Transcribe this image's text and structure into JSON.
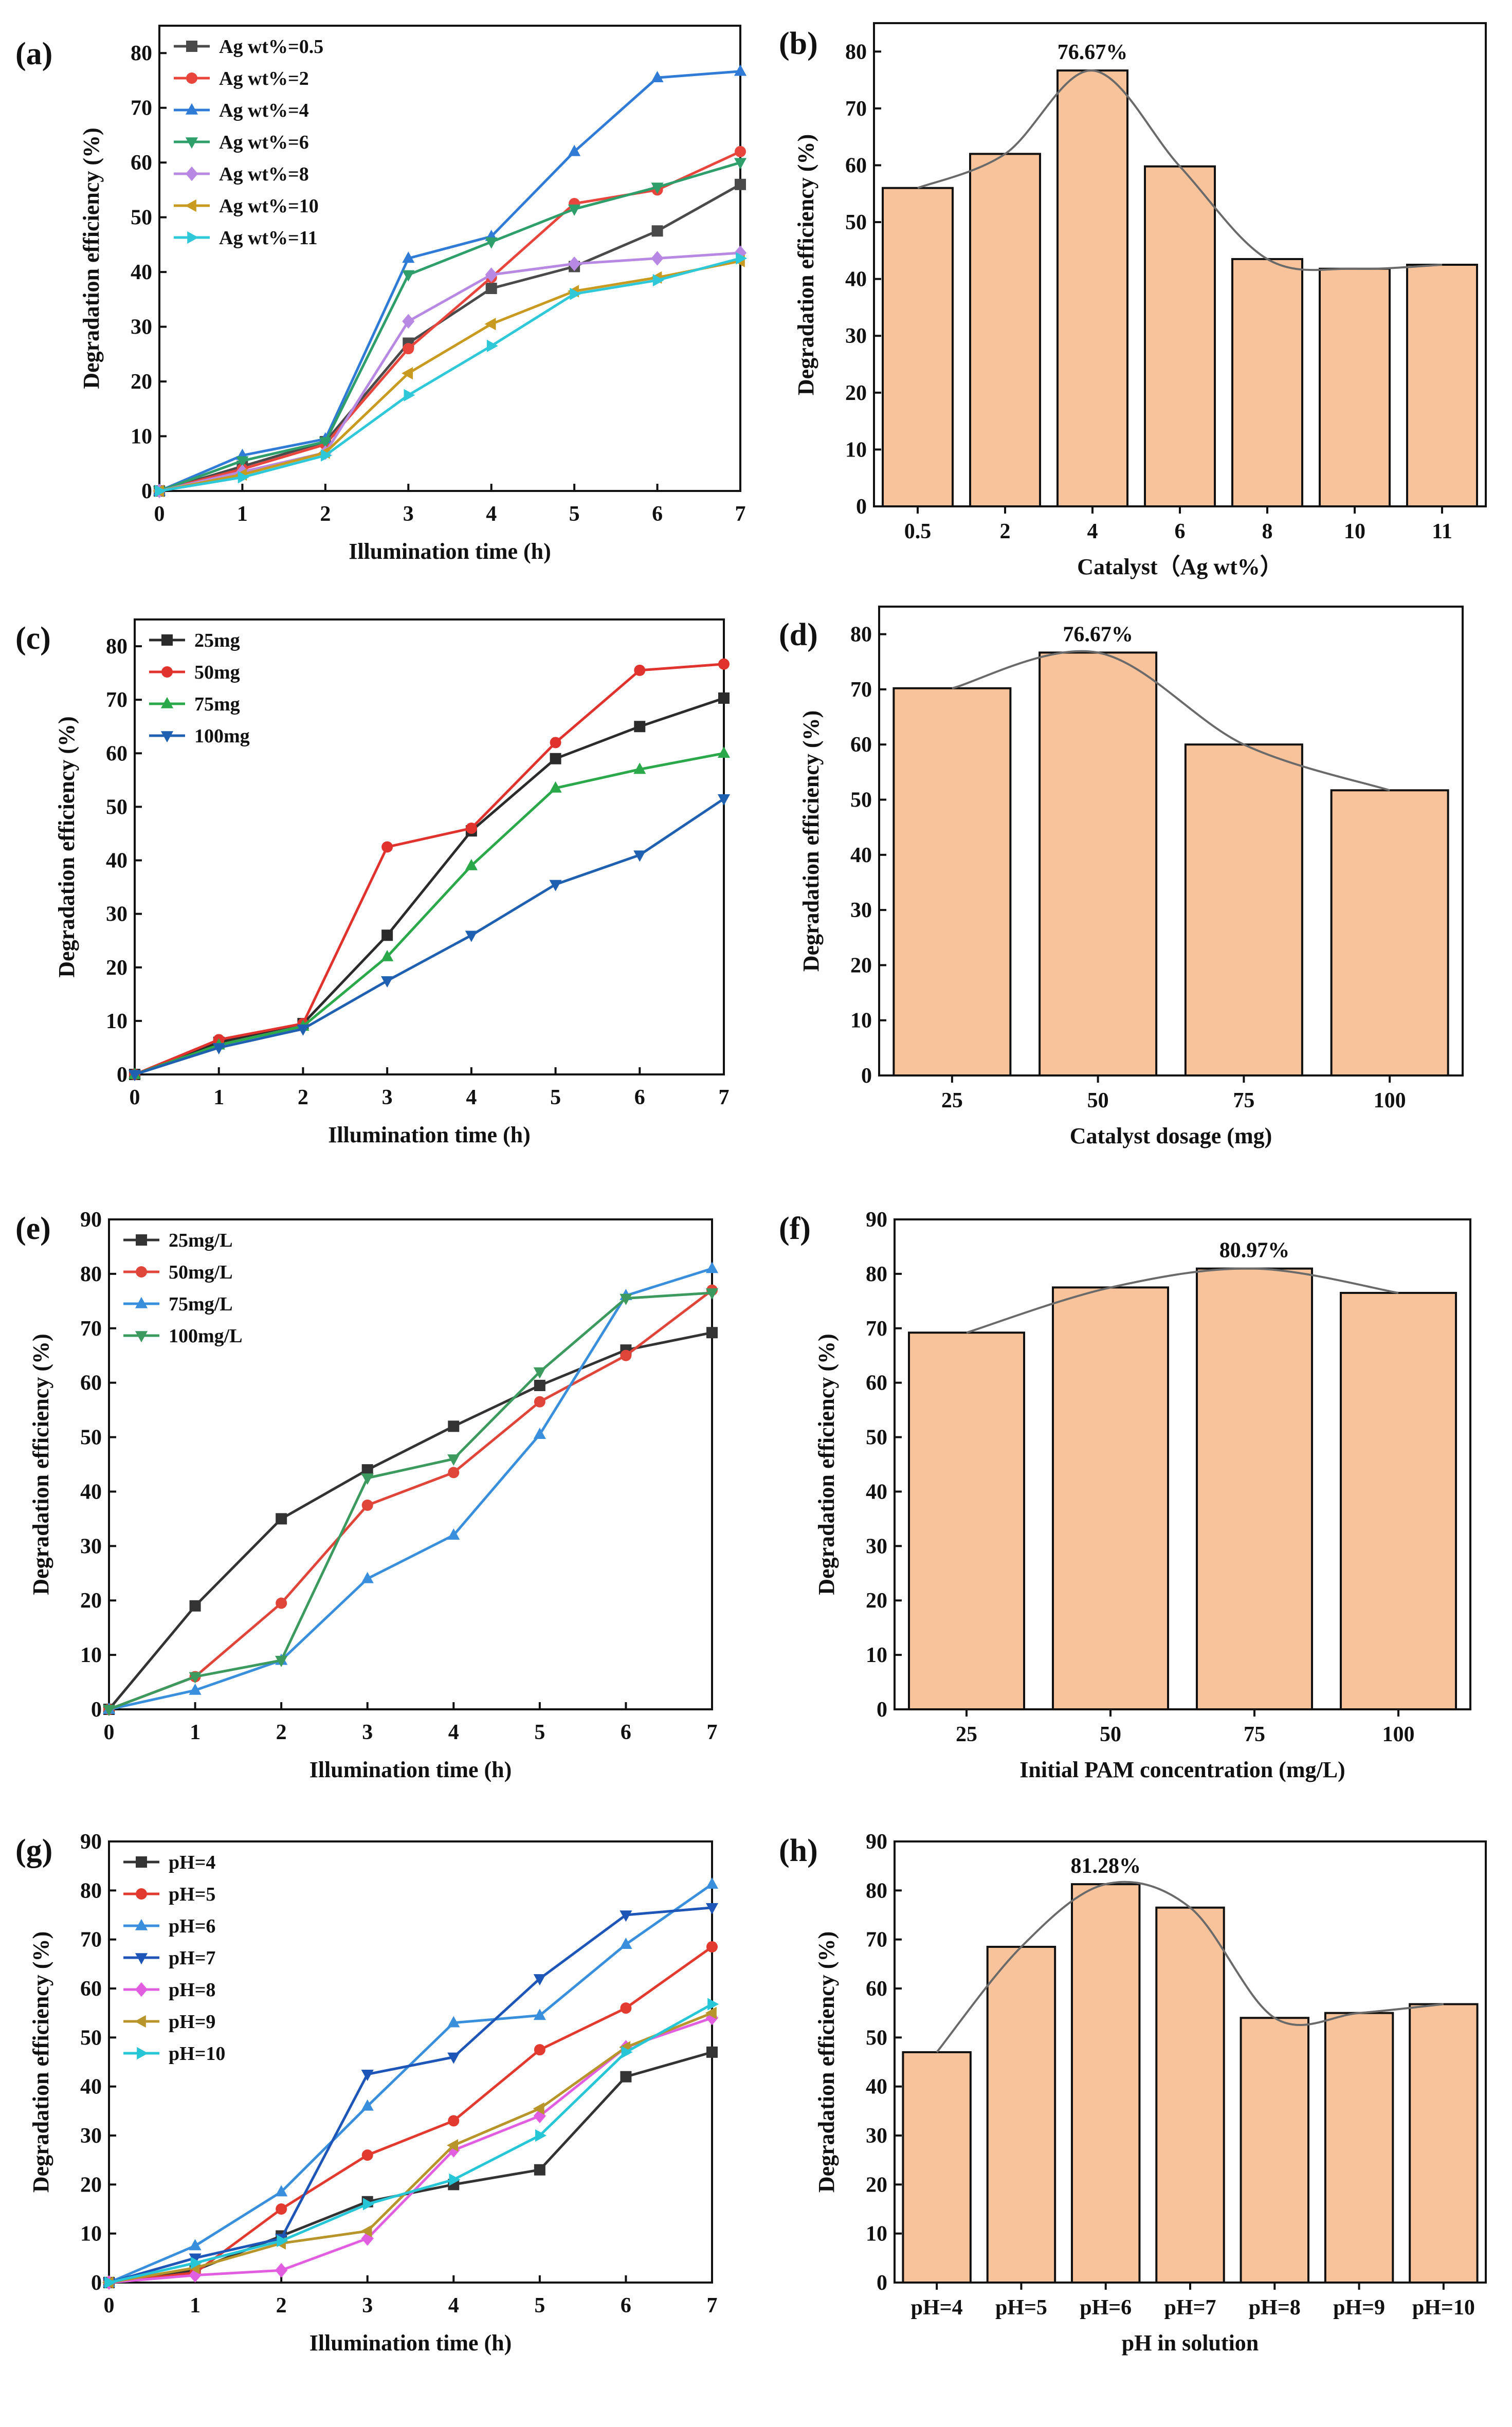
{
  "chart_data": [
    {
      "id": "a",
      "type": "line",
      "panel_label": "(a)",
      "xlabel": "Illumination time (h)",
      "ylabel": "Degradation efficiency (%)",
      "x": [
        0,
        1,
        2,
        3,
        4,
        5,
        6,
        7
      ],
      "xlim": [
        0,
        7
      ],
      "ylim": [
        0,
        85
      ],
      "yticks": [
        0,
        10,
        20,
        30,
        40,
        50,
        60,
        70,
        80
      ],
      "legend_position": "top-left",
      "series": [
        {
          "name": "Ag wt%=0.5",
          "color": "#4a4a4a",
          "marker": "square",
          "values": [
            0,
            4.5,
            9.0,
            27.0,
            37.0,
            41.0,
            47.5,
            56.0
          ]
        },
        {
          "name": "Ag wt%=2",
          "color": "#e8453c",
          "marker": "circle",
          "values": [
            0,
            4.0,
            8.5,
            26.0,
            39.0,
            52.5,
            55.0,
            62.0
          ]
        },
        {
          "name": "Ag wt%=4",
          "color": "#2f7bd6",
          "marker": "triangle-up",
          "values": [
            0,
            6.5,
            9.5,
            42.5,
            46.5,
            62.0,
            75.5,
            76.67
          ]
        },
        {
          "name": "Ag wt%=6",
          "color": "#2e9e6b",
          "marker": "triangle-down",
          "values": [
            0,
            5.5,
            9.0,
            39.5,
            45.5,
            51.5,
            55.5,
            60.0
          ]
        },
        {
          "name": "Ag wt%=8",
          "color": "#b889e3",
          "marker": "diamond",
          "values": [
            0,
            3.5,
            7.0,
            31.0,
            39.5,
            41.5,
            42.5,
            43.5
          ]
        },
        {
          "name": "Ag wt%=10",
          "color": "#c89a20",
          "marker": "triangle-left",
          "values": [
            0,
            3.0,
            7.0,
            21.5,
            30.5,
            36.5,
            39.0,
            42.0
          ]
        },
        {
          "name": "Ag wt%=11",
          "color": "#2ec8d8",
          "marker": "triangle-right",
          "values": [
            0,
            2.5,
            6.5,
            17.5,
            26.5,
            36.0,
            38.5,
            42.5
          ]
        }
      ]
    },
    {
      "id": "b",
      "type": "bar",
      "panel_label": "(b)",
      "xlabel": "Catalyst（Ag wt%）",
      "ylabel": "Degradation efficiency (%)",
      "categories": [
        "0.5",
        "2",
        "4",
        "6",
        "8",
        "10",
        "11"
      ],
      "values": [
        56.0,
        62.0,
        76.67,
        59.8,
        43.5,
        41.8,
        42.5
      ],
      "ylim": [
        0,
        85
      ],
      "yticks": [
        0,
        10,
        20,
        30,
        40,
        50,
        60,
        70,
        80
      ],
      "annotation": {
        "text": "76.67%",
        "category_index": 2
      },
      "bar_color": "#f8c39a",
      "curve_color": "#6a6a6a"
    },
    {
      "id": "c",
      "type": "line",
      "panel_label": "(c)",
      "xlabel": "Illumination time (h)",
      "ylabel": "Degradation efficiency (%)",
      "x": [
        0,
        1,
        2,
        3,
        4,
        5,
        6,
        7
      ],
      "xlim": [
        0,
        7
      ],
      "ylim": [
        0,
        85
      ],
      "yticks": [
        0,
        10,
        20,
        30,
        40,
        50,
        60,
        70,
        80
      ],
      "legend_position": "top-left",
      "series": [
        {
          "name": "25mg",
          "color": "#2b2b2b",
          "marker": "square",
          "values": [
            0,
            6.0,
            9.5,
            26.0,
            45.5,
            59.0,
            65.0,
            70.3
          ]
        },
        {
          "name": "50mg",
          "color": "#e0332d",
          "marker": "circle",
          "values": [
            0,
            6.5,
            9.5,
            42.5,
            46.0,
            62.0,
            75.5,
            76.67
          ]
        },
        {
          "name": "75mg",
          "color": "#2aa84a",
          "marker": "triangle-up",
          "values": [
            0,
            5.5,
            9.0,
            22.0,
            39.0,
            53.5,
            57.0,
            60.0
          ]
        },
        {
          "name": "100mg",
          "color": "#2060b0",
          "marker": "triangle-down",
          "values": [
            0,
            5.0,
            8.5,
            17.5,
            26.0,
            35.5,
            41.0,
            51.5
          ]
        }
      ]
    },
    {
      "id": "d",
      "type": "bar",
      "panel_label": "(d)",
      "xlabel": "Catalyst dosage (mg)",
      "ylabel": "Degradation efficiency (%)",
      "categories": [
        "25",
        "50",
        "75",
        "100"
      ],
      "values": [
        70.2,
        76.67,
        60.0,
        51.7
      ],
      "ylim": [
        0,
        85
      ],
      "yticks": [
        0,
        10,
        20,
        30,
        40,
        50,
        60,
        70,
        80
      ],
      "annotation": {
        "text": "76.67%",
        "category_index": 1
      },
      "bar_color": "#f8c39a",
      "curve_color": "#6a6a6a"
    },
    {
      "id": "e",
      "type": "line",
      "panel_label": "(e)",
      "xlabel": "Illumination time (h)",
      "ylabel": "Degradation efficiency (%)",
      "x": [
        0,
        1,
        2,
        3,
        4,
        5,
        6,
        7
      ],
      "xlim": [
        0,
        7
      ],
      "ylim": [
        0,
        90
      ],
      "yticks": [
        0,
        10,
        20,
        30,
        40,
        50,
        60,
        70,
        80,
        90
      ],
      "legend_position": "top-left",
      "series": [
        {
          "name": "25mg/L",
          "color": "#333333",
          "marker": "square",
          "values": [
            0,
            19.0,
            35.0,
            44.0,
            52.0,
            59.5,
            66.0,
            69.2
          ]
        },
        {
          "name": "50mg/L",
          "color": "#e0453a",
          "marker": "circle",
          "values": [
            0,
            6.0,
            19.5,
            37.5,
            43.5,
            56.5,
            65.0,
            77.0
          ]
        },
        {
          "name": "75mg/L",
          "color": "#3a8fdd",
          "marker": "triangle-up",
          "values": [
            0,
            3.5,
            9.0,
            24.0,
            32.0,
            50.5,
            76.0,
            80.97
          ]
        },
        {
          "name": "100mg/L",
          "color": "#3c9a5f",
          "marker": "triangle-down",
          "values": [
            0,
            6.0,
            9.0,
            42.5,
            46.0,
            62.0,
            75.5,
            76.5
          ]
        }
      ]
    },
    {
      "id": "f",
      "type": "bar",
      "panel_label": "(f)",
      "xlabel": "Initial PAM concentration (mg/L)",
      "ylabel": "Degradation efficiency (%)",
      "categories": [
        "25",
        "50",
        "75",
        "100"
      ],
      "values": [
        69.2,
        77.5,
        80.97,
        76.5
      ],
      "ylim": [
        0,
        90
      ],
      "yticks": [
        0,
        10,
        20,
        30,
        40,
        50,
        60,
        70,
        80,
        90
      ],
      "annotation": {
        "text": "80.97%",
        "category_index": 2
      },
      "bar_color": "#f8c39a",
      "curve_color": "#6a6a6a"
    },
    {
      "id": "g",
      "type": "line",
      "panel_label": "(g)",
      "xlabel": "Illumination time (h)",
      "ylabel": "Degradation efficiency (%)",
      "x": [
        0,
        1,
        2,
        3,
        4,
        5,
        6,
        7
      ],
      "xlim": [
        0,
        7
      ],
      "ylim": [
        0,
        90
      ],
      "yticks": [
        0,
        10,
        20,
        30,
        40,
        50,
        60,
        70,
        80,
        90
      ],
      "legend_position": "top-left",
      "series": [
        {
          "name": "pH=4",
          "color": "#333333",
          "marker": "square",
          "values": [
            0,
            2.5,
            9.5,
            16.5,
            20.0,
            23.0,
            42.0,
            47.0
          ]
        },
        {
          "name": "pH=5",
          "color": "#e23a2e",
          "marker": "circle",
          "values": [
            0,
            2.0,
            15.0,
            26.0,
            33.0,
            47.5,
            56.0,
            68.5
          ]
        },
        {
          "name": "pH=6",
          "color": "#3a8fdd",
          "marker": "triangle-up",
          "values": [
            0,
            7.5,
            18.5,
            36.0,
            53.0,
            54.5,
            69.0,
            81.28
          ]
        },
        {
          "name": "pH=7",
          "color": "#1e56b8",
          "marker": "triangle-down",
          "values": [
            0,
            5.0,
            9.0,
            42.5,
            46.0,
            62.0,
            75.0,
            76.5
          ]
        },
        {
          "name": "pH=8",
          "color": "#e25ee0",
          "marker": "diamond",
          "values": [
            0,
            1.5,
            2.5,
            9.0,
            27.0,
            34.0,
            48.0,
            54.0
          ]
        },
        {
          "name": "pH=9",
          "color": "#b8952a",
          "marker": "triangle-left",
          "values": [
            0,
            3.0,
            8.0,
            10.5,
            28.0,
            35.5,
            48.0,
            55.0
          ]
        },
        {
          "name": "pH=10",
          "color": "#26c6d6",
          "marker": "triangle-right",
          "values": [
            0,
            4.0,
            8.5,
            16.0,
            21.0,
            30.0,
            47.0,
            56.8
          ]
        }
      ]
    },
    {
      "id": "h",
      "type": "bar",
      "panel_label": "(h)",
      "xlabel": "pH in solution",
      "ylabel": "Degradation efficiency (%)",
      "categories": [
        "pH=4",
        "pH=5",
        "pH=6",
        "pH=7",
        "pH=8",
        "pH=9",
        "pH=10"
      ],
      "values": [
        47.0,
        68.5,
        81.28,
        76.5,
        54.0,
        55.0,
        56.8
      ],
      "ylim": [
        0,
        90
      ],
      "yticks": [
        0,
        10,
        20,
        30,
        40,
        50,
        60,
        70,
        80,
        90
      ],
      "annotation": {
        "text": "81.28%",
        "category_index": 2
      },
      "bar_color": "#f8c39a",
      "curve_color": "#6a6a6a"
    }
  ]
}
